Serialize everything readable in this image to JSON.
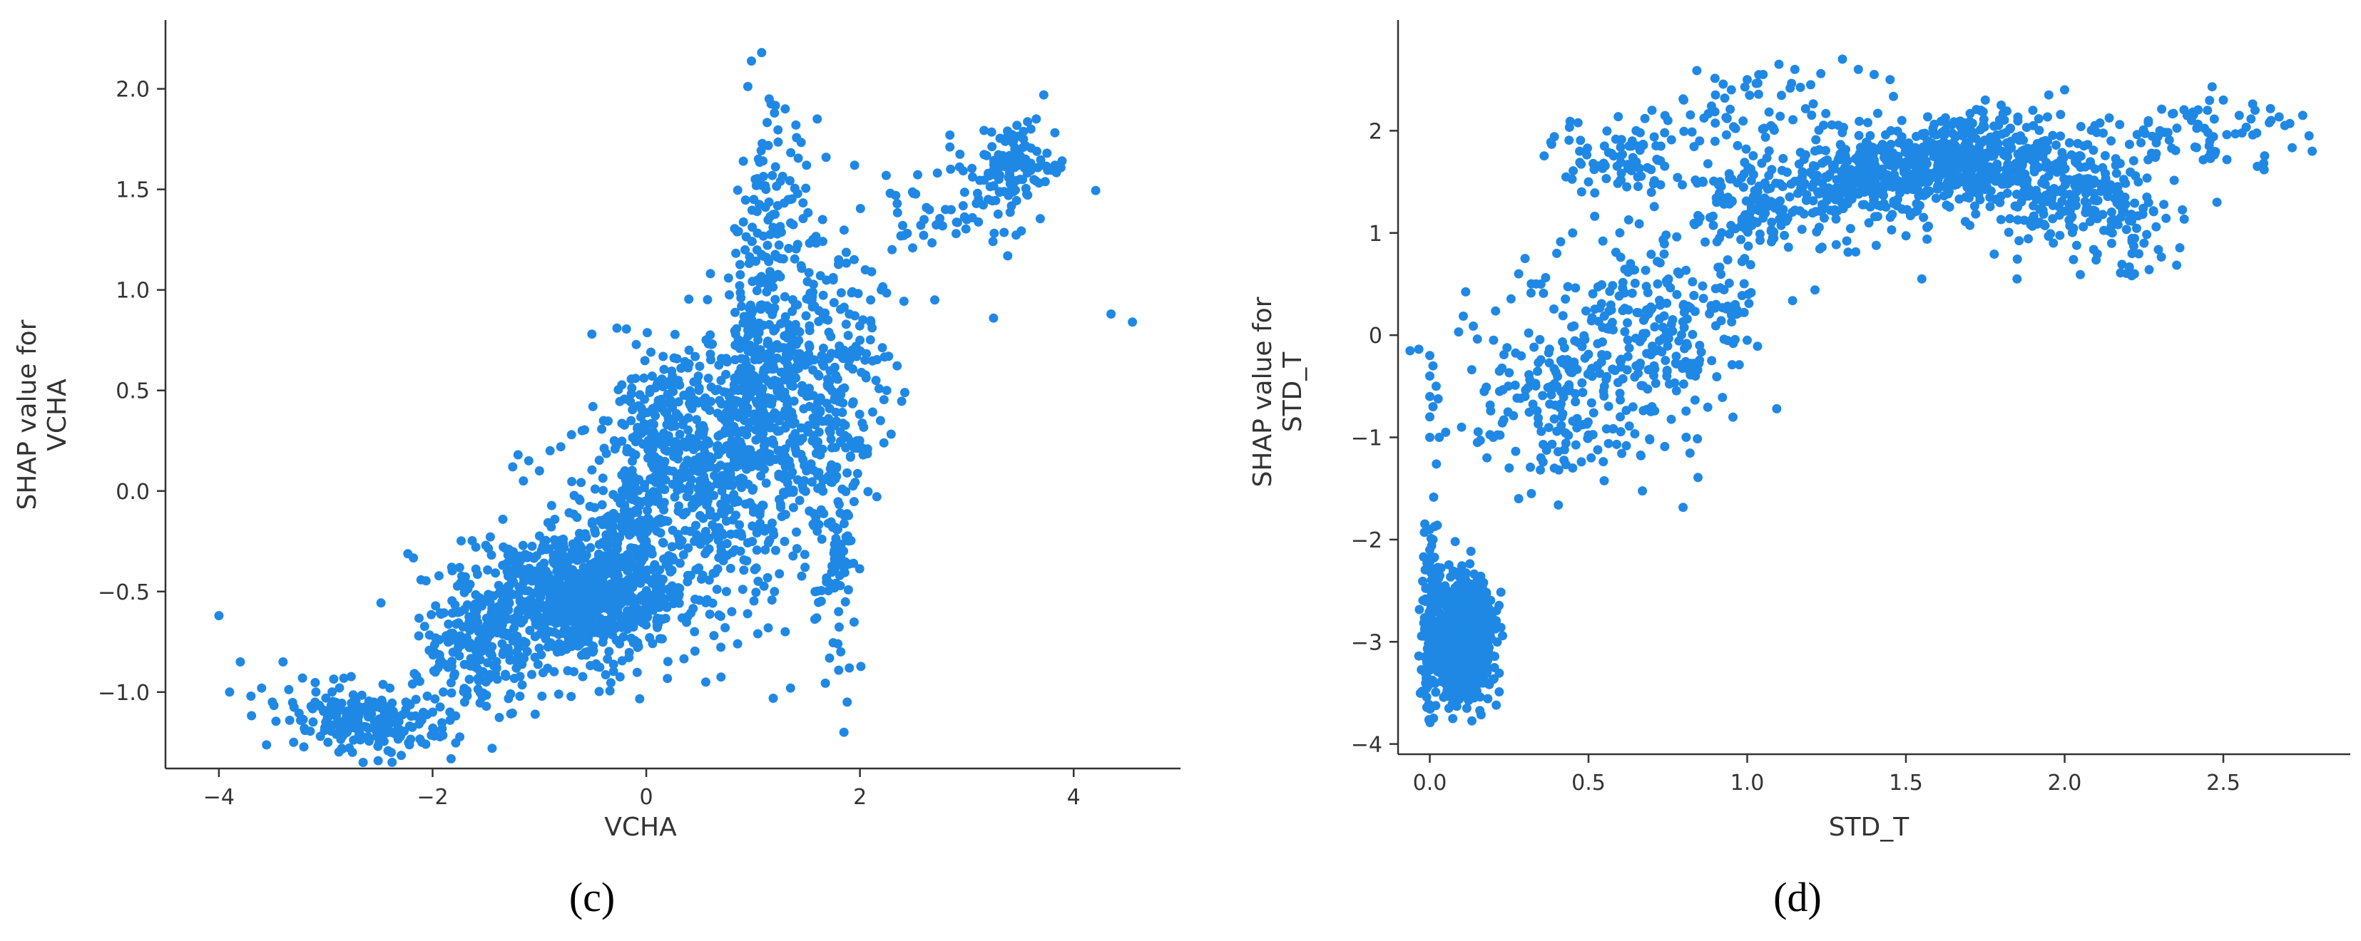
{
  "chart_data": [
    {
      "type": "scatter",
      "panel_label": "(c)",
      "xlabel": "VCHA",
      "ylabel_lines": [
        "SHAP value for",
        "VCHA"
      ],
      "xlim": [
        -4.5,
        5.0
      ],
      "ylim": [
        -1.38,
        2.3
      ],
      "xticks": [
        -4,
        -2,
        0,
        2,
        4
      ],
      "xtick_labels": [
        "−4",
        "−2",
        "0",
        "2",
        "4"
      ],
      "yticks": [
        -1.0,
        -0.5,
        0.0,
        0.5,
        1.0,
        1.5,
        2.0
      ],
      "ytick_labels": [
        "−1.0",
        "−0.5",
        "0.0",
        "0.5",
        "1.0",
        "1.5",
        "2.0"
      ],
      "grid": false,
      "marker_color": "#1f88e5",
      "points": [
        [
          -4.0,
          -0.62
        ],
        [
          -3.9,
          -1.0
        ],
        [
          -3.8,
          -0.85
        ],
        [
          -3.7,
          -1.02
        ],
        [
          -3.6,
          -0.98
        ],
        [
          -3.5,
          -1.05
        ],
        [
          -3.4,
          -0.85
        ],
        [
          -3.3,
          -1.25
        ],
        [
          -3.2,
          -1.18
        ],
        [
          -3.1,
          -1.05
        ],
        [
          -3.05,
          -1.22
        ],
        [
          -3.0,
          -1.15
        ],
        [
          -2.95,
          -1.08
        ],
        [
          -2.9,
          -1.12
        ],
        [
          -2.85,
          -1.28
        ],
        [
          -2.8,
          -1.2
        ],
        [
          -2.75,
          -1.3
        ],
        [
          -2.7,
          -1.12
        ],
        [
          -2.65,
          -1.35
        ],
        [
          -2.6,
          -1.18
        ],
        [
          -2.55,
          -1.05
        ],
        [
          -2.5,
          -1.25
        ],
        [
          -2.45,
          -1.1
        ],
        [
          -2.4,
          -0.98
        ],
        [
          -2.35,
          -1.15
        ],
        [
          -2.3,
          -1.22
        ],
        [
          -2.25,
          -1.05
        ],
        [
          -2.2,
          -1.12
        ],
        [
          -2.15,
          -0.92
        ],
        [
          -2.1,
          -1.25
        ],
        [
          -2.05,
          -1.02
        ],
        [
          -2.0,
          -1.1
        ],
        [
          -1.95,
          -0.88
        ],
        [
          -1.9,
          -1.0
        ],
        [
          -1.85,
          -0.75
        ],
        [
          -1.8,
          -0.92
        ],
        [
          -1.75,
          -0.82
        ],
        [
          -1.7,
          -1.05
        ],
        [
          -1.65,
          -0.68
        ],
        [
          -1.6,
          -0.85
        ],
        [
          -1.55,
          -0.78
        ],
        [
          -1.5,
          -0.95
        ],
        [
          -1.45,
          -0.65
        ],
        [
          -1.4,
          -0.88
        ],
        [
          -1.35,
          -0.55
        ],
        [
          -1.3,
          -0.72
        ],
        [
          -1.25,
          0.12
        ],
        [
          -1.2,
          0.18
        ],
        [
          -1.15,
          0.05
        ],
        [
          -1.1,
          0.15
        ],
        [
          -1.0,
          0.1
        ],
        [
          -0.9,
          0.2
        ],
        [
          -0.8,
          0.22
        ],
        [
          -0.7,
          0.28
        ],
        [
          -0.6,
          0.3
        ],
        [
          -0.5,
          0.42
        ],
        [
          -0.4,
          0.35
        ],
        [
          -0.3,
          0.25
        ],
        [
          -0.2,
          0.1
        ],
        [
          -0.1,
          0.18
        ],
        [
          0.0,
          0.3
        ],
        [
          0.1,
          0.42
        ],
        [
          0.2,
          0.48
        ],
        [
          0.3,
          0.55
        ],
        [
          0.4,
          0.7
        ],
        [
          0.5,
          0.62
        ],
        [
          0.6,
          0.68
        ],
        [
          0.7,
          0.55
        ],
        [
          0.8,
          0.4
        ],
        [
          0.9,
          0.5
        ],
        [
          0.95,
          0.8
        ],
        [
          1.0,
          0.9
        ],
        [
          1.02,
          1.55
        ],
        [
          1.05,
          1.65
        ],
        [
          1.08,
          2.18
        ],
        [
          1.1,
          1.72
        ],
        [
          1.12,
          1.5
        ],
        [
          1.15,
          1.95
        ],
        [
          1.2,
          1.88
        ],
        [
          1.25,
          1.3
        ],
        [
          1.3,
          1.9
        ],
        [
          1.35,
          1.45
        ],
        [
          1.4,
          1.82
        ],
        [
          1.45,
          1.12
        ],
        [
          1.5,
          1.62
        ],
        [
          1.55,
          0.95
        ],
        [
          1.6,
          1.85
        ],
        [
          1.65,
          1.35
        ],
        [
          1.7,
          0.85
        ],
        [
          1.75,
          1.05
        ],
        [
          1.8,
          1.15
        ],
        [
          1.85,
          0.7
        ],
        [
          1.9,
          0.88
        ],
        [
          1.95,
          1.62
        ],
        [
          2.0,
          0.75
        ],
        [
          2.05,
          1.1
        ],
        [
          2.1,
          0.95
        ],
        [
          2.15,
          0.55
        ],
        [
          2.2,
          1.0
        ],
        [
          2.25,
          0.5
        ],
        [
          2.3,
          1.2
        ],
        [
          2.4,
          1.32
        ],
        [
          2.5,
          1.48
        ],
        [
          2.6,
          1.35
        ],
        [
          2.7,
          0.95
        ],
        [
          2.8,
          1.4
        ],
        [
          2.9,
          1.28
        ],
        [
          3.0,
          1.35
        ],
        [
          3.1,
          1.48
        ],
        [
          3.2,
          1.45
        ],
        [
          3.25,
          0.86
        ],
        [
          3.3,
          1.55
        ],
        [
          3.35,
          1.62
        ],
        [
          3.4,
          1.58
        ],
        [
          3.45,
          1.7
        ],
        [
          3.5,
          1.55
        ],
        [
          3.55,
          1.65
        ],
        [
          3.6,
          1.8
        ],
        [
          3.65,
          1.85
        ],
        [
          3.7,
          1.62
        ],
        [
          3.72,
          1.97
        ],
        [
          3.75,
          1.68
        ],
        [
          4.35,
          0.88
        ],
        [
          4.55,
          0.84
        ],
        [
          -1.2,
          -0.6
        ],
        [
          -1.0,
          -0.55
        ],
        [
          -0.9,
          -0.7
        ],
        [
          -0.8,
          -0.5
        ],
        [
          -0.7,
          -0.62
        ],
        [
          -0.6,
          -0.45
        ],
        [
          -0.5,
          -0.68
        ],
        [
          -0.4,
          -0.52
        ],
        [
          -0.3,
          -0.4
        ],
        [
          -0.2,
          -0.35
        ],
        [
          -0.1,
          -0.3
        ],
        [
          0.0,
          -0.25
        ],
        [
          0.1,
          -0.2
        ],
        [
          0.2,
          -0.15
        ],
        [
          0.3,
          -0.1
        ],
        [
          0.4,
          0.0
        ],
        [
          0.5,
          0.05
        ],
        [
          0.6,
          0.12
        ],
        [
          0.7,
          0.2
        ],
        [
          0.8,
          0.25
        ],
        [
          0.9,
          0.3
        ],
        [
          1.0,
          0.35
        ],
        [
          1.1,
          0.45
        ],
        [
          1.2,
          0.55
        ],
        [
          1.3,
          0.4
        ],
        [
          1.4,
          0.2
        ],
        [
          1.5,
          0.1
        ],
        [
          1.6,
          -0.2
        ],
        [
          1.7,
          -0.45
        ],
        [
          1.8,
          -0.6
        ],
        [
          1.82,
          -0.8
        ],
        [
          1.85,
          -1.2
        ],
        [
          1.2,
          -0.5
        ],
        [
          1.3,
          -0.7
        ],
        [
          1.35,
          -0.98
        ],
        [
          0.7,
          -0.3
        ],
        [
          0.75,
          -0.5
        ],
        [
          0.8,
          -0.6
        ],
        [
          1.9,
          -0.88
        ],
        [
          1.88,
          -1.05
        ]
      ],
      "clusters": [
        {
          "cx": -0.65,
          "cy": -0.52,
          "sx": 0.55,
          "sy": 0.17,
          "n": 900
        },
        {
          "cx": -2.55,
          "cy": -1.15,
          "sx": 0.45,
          "sy": 0.09,
          "n": 190
        },
        {
          "cx": -1.55,
          "cy": -0.78,
          "sx": 0.3,
          "sy": 0.16,
          "n": 150
        },
        {
          "cx": -0.1,
          "cy": -0.15,
          "sx": 0.22,
          "sy": 0.16,
          "n": 180
        },
        {
          "cx": 0.12,
          "cy": 0.32,
          "sx": 0.22,
          "sy": 0.2,
          "n": 170
        },
        {
          "cx": 0.6,
          "cy": 0.15,
          "sx": 0.22,
          "sy": 0.35,
          "n": 260
        },
        {
          "cx": 1.0,
          "cy": 0.42,
          "sx": 0.15,
          "sy": 0.42,
          "n": 300
        },
        {
          "cx": 1.38,
          "cy": 0.55,
          "sx": 0.2,
          "sy": 0.45,
          "n": 240
        },
        {
          "cx": 1.75,
          "cy": -0.1,
          "sx": 0.13,
          "sy": 0.38,
          "n": 130
        },
        {
          "cx": 1.95,
          "cy": 0.62,
          "sx": 0.22,
          "sy": 0.28,
          "n": 100
        },
        {
          "cx": 3.45,
          "cy": 1.62,
          "sx": 0.22,
          "sy": 0.08,
          "n": 110
        },
        {
          "cx": 2.85,
          "cy": 1.38,
          "sx": 0.4,
          "sy": 0.12,
          "n": 50
        },
        {
          "cx": 1.15,
          "cy": 1.45,
          "sx": 0.15,
          "sy": 0.28,
          "n": 60
        }
      ]
    },
    {
      "type": "scatter",
      "panel_label": "(d)",
      "xlabel": "STD_T",
      "ylabel_lines": [
        "SHAP value for",
        "STD_T"
      ],
      "xlim": [
        -0.1,
        2.9
      ],
      "ylim": [
        -4.1,
        3.0
      ],
      "xticks": [
        0.0,
        0.5,
        1.0,
        1.5,
        2.0,
        2.5
      ],
      "xtick_labels": [
        "0.0",
        "0.5",
        "1.0",
        "1.5",
        "2.0",
        "2.5"
      ],
      "yticks": [
        -4,
        -3,
        -2,
        -1,
        0,
        1,
        2
      ],
      "ytick_labels": [
        "−4",
        "−3",
        "−2",
        "−1",
        "0",
        "1",
        "2"
      ],
      "grid": false,
      "marker_color": "#1f88e5",
      "points": [
        [
          0.0,
          -0.2
        ],
        [
          0.0,
          -0.4
        ],
        [
          0.0,
          -0.6
        ],
        [
          0.0,
          -0.8
        ],
        [
          0.0,
          -1.0
        ],
        [
          0.01,
          -0.3
        ],
        [
          0.01,
          -0.7
        ],
        [
          0.02,
          -0.5
        ],
        [
          0.0,
          -1.9
        ],
        [
          0.0,
          -2.1
        ],
        [
          0.0,
          -2.3
        ],
        [
          0.01,
          -2.0
        ],
        [
          0.03,
          -1.0
        ],
        [
          0.05,
          -0.95
        ],
        [
          0.1,
          -0.9
        ],
        [
          0.15,
          -1.05
        ],
        [
          0.18,
          -1.2
        ],
        [
          0.2,
          -1.0
        ],
        [
          0.22,
          -0.55
        ],
        [
          0.25,
          -1.3
        ],
        [
          0.28,
          -1.6
        ],
        [
          0.3,
          -0.6
        ],
        [
          0.32,
          -1.55
        ],
        [
          0.35,
          -1.2
        ],
        [
          0.28,
          0.6
        ],
        [
          0.3,
          0.75
        ],
        [
          0.35,
          0.5
        ],
        [
          0.4,
          0.8
        ],
        [
          0.45,
          1.0
        ],
        [
          0.5,
          1.5
        ],
        [
          0.55,
          1.85
        ],
        [
          0.6,
          1.75
        ],
        [
          0.65,
          2.0
        ],
        [
          0.7,
          2.2
        ],
        [
          0.75,
          2.1
        ],
        [
          0.8,
          2.3
        ],
        [
          0.85,
          1.9
        ],
        [
          0.9,
          2.35
        ],
        [
          0.95,
          2.4
        ],
        [
          1.0,
          2.5
        ],
        [
          1.05,
          2.55
        ],
        [
          1.1,
          2.65
        ],
        [
          1.15,
          2.6
        ],
        [
          1.2,
          2.45
        ],
        [
          1.3,
          2.7
        ],
        [
          1.35,
          2.6
        ],
        [
          1.4,
          2.55
        ],
        [
          1.45,
          2.5
        ],
        [
          1.75,
          2.3
        ],
        [
          1.8,
          2.25
        ],
        [
          1.9,
          2.2
        ],
        [
          1.95,
          2.35
        ],
        [
          2.0,
          2.4
        ],
        [
          2.3,
          2.0
        ],
        [
          2.4,
          2.1
        ],
        [
          2.45,
          2.2
        ],
        [
          2.5,
          2.3
        ],
        [
          2.55,
          2.15
        ],
        [
          2.6,
          2.2
        ],
        [
          2.65,
          2.1
        ],
        [
          2.75,
          2.15
        ],
        [
          2.77,
          1.95
        ],
        [
          2.78,
          1.8
        ],
        [
          2.48,
          1.3
        ],
        [
          1.55,
          0.55
        ],
        [
          1.85,
          0.55
        ],
        [
          2.22,
          0.6
        ],
        [
          2.25,
          0.9
        ],
        [
          2.15,
          1.0
        ],
        [
          0.85,
          -0.1
        ],
        [
          0.95,
          0.2
        ],
        [
          1.0,
          -0.05
        ],
        [
          0.7,
          -0.7
        ],
        [
          0.6,
          -0.8
        ],
        [
          0.5,
          -1.0
        ],
        [
          0.45,
          -1.3
        ],
        [
          0.55,
          -0.5
        ],
        [
          0.65,
          -0.3
        ],
        [
          0.75,
          0.0
        ],
        [
          0.8,
          0.3
        ]
      ],
      "clusters": [
        {
          "cx": 0.1,
          "cy": -3.0,
          "sx": 0.045,
          "sy": 0.28,
          "n": 900
        },
        {
          "cx": 0.0,
          "cy": -2.8,
          "sx": 0.012,
          "sy": 0.45,
          "n": 120
        },
        {
          "cx": 0.17,
          "cy": -2.7,
          "sx": 0.025,
          "sy": 0.2,
          "n": 60
        },
        {
          "cx": 0.45,
          "cy": -0.6,
          "sx": 0.18,
          "sy": 0.42,
          "n": 220
        },
        {
          "cx": 0.75,
          "cy": 0.1,
          "sx": 0.15,
          "sy": 0.45,
          "n": 200
        },
        {
          "cx": 1.05,
          "cy": 1.2,
          "sx": 0.14,
          "sy": 0.28,
          "n": 160
        },
        {
          "cx": 1.4,
          "cy": 1.55,
          "sx": 0.15,
          "sy": 0.25,
          "n": 340
        },
        {
          "cx": 1.7,
          "cy": 1.75,
          "sx": 0.12,
          "sy": 0.22,
          "n": 300
        },
        {
          "cx": 1.95,
          "cy": 1.45,
          "sx": 0.14,
          "sy": 0.3,
          "n": 260
        },
        {
          "cx": 2.2,
          "cy": 1.3,
          "sx": 0.08,
          "sy": 0.3,
          "n": 70
        },
        {
          "cx": 0.6,
          "cy": 1.7,
          "sx": 0.12,
          "sy": 0.22,
          "n": 80
        },
        {
          "cx": 2.45,
          "cy": 1.95,
          "sx": 0.15,
          "sy": 0.18,
          "n": 60
        },
        {
          "cx": 0.95,
          "cy": 2.2,
          "sx": 0.12,
          "sy": 0.2,
          "n": 50
        }
      ]
    }
  ]
}
